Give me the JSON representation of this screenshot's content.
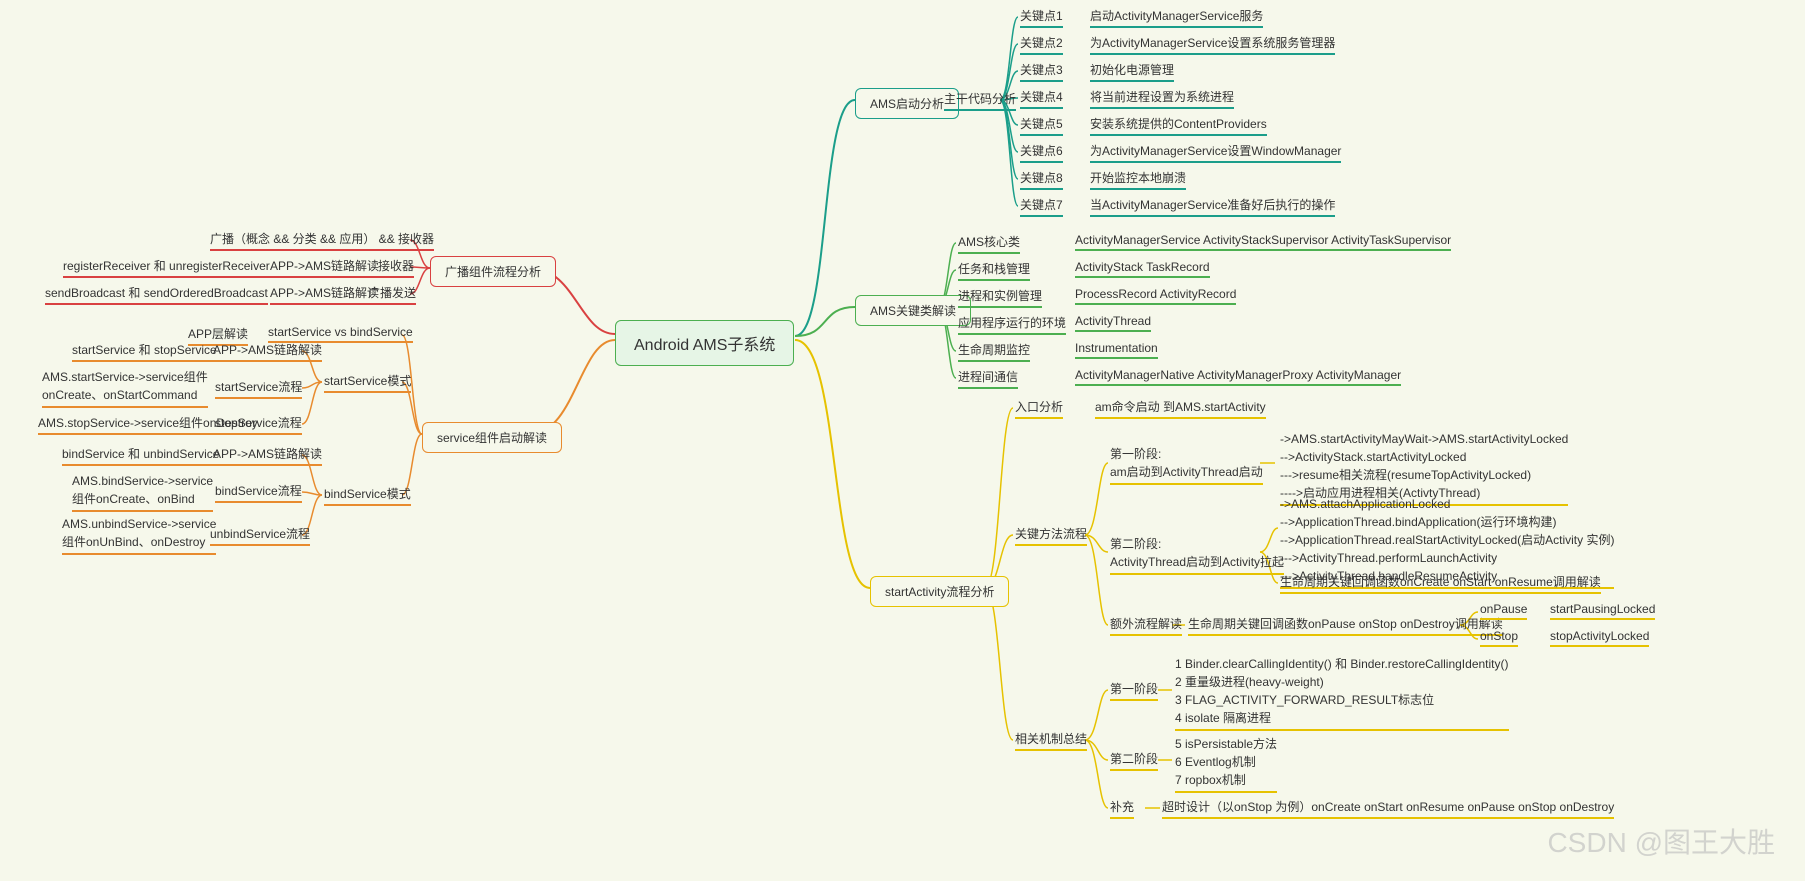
{
  "root": {
    "label": "Android AMS子系统"
  },
  "colors": {
    "teal": "#1b9e8a",
    "green": "#4caf50",
    "yellow": "#e6c200",
    "red": "#d94141",
    "orange": "#e88b2e",
    "bg": "#f6f8eb"
  },
  "branches": {
    "ams_start": {
      "label": "AMS启动分析",
      "sub": "主干代码分析",
      "items": [
        {
          "k": "关键点1",
          "v": "启动ActivityManagerService服务"
        },
        {
          "k": "关键点2",
          "v": "为ActivityManagerService设置系统服务管理器"
        },
        {
          "k": "关键点3",
          "v": "初始化电源管理"
        },
        {
          "k": "关键点4",
          "v": "将当前进程设置为系统进程"
        },
        {
          "k": "关键点5",
          "v": "安装系统提供的ContentProviders"
        },
        {
          "k": "关键点6",
          "v": "为ActivityManagerService设置WindowManager"
        },
        {
          "k": "关键点8",
          "v": "开始监控本地崩溃"
        },
        {
          "k": "关键点7",
          "v": "当ActivityManagerService准备好后执行的操作"
        }
      ]
    },
    "ams_keys": {
      "label": "AMS关键类解读",
      "items": [
        {
          "k": "AMS核心类",
          "v": "ActivityManagerService  ActivityStackSupervisor ActivityTaskSupervisor"
        },
        {
          "k": "任务和栈管理",
          "v": "ActivityStack  TaskRecord"
        },
        {
          "k": "进程和实例管理",
          "v": "ProcessRecord  ActivityRecord"
        },
        {
          "k": "应用程序运行的环境",
          "v": "ActivityThread"
        },
        {
          "k": "生命周期监控",
          "v": "Instrumentation"
        },
        {
          "k": "进程间通信",
          "v": "ActivityManagerNative  ActivityManagerProxy ActivityManager"
        }
      ]
    },
    "start_activity": {
      "label": "startActivity流程分析",
      "entry": {
        "k": "入口分析",
        "v": "am命令启动 到AMS.startActivity"
      },
      "keyflow": {
        "label": "关键方法流程",
        "phase1": {
          "k": "第一阶段:\nam启动到ActivityThread启动",
          "lines": "->AMS.startActivityMayWait->AMS.startActivityLocked\n-->ActivityStack.startActivityLocked\n--->resume相关流程(resumeTopActivityLocked)\n---->启动应用进程相关(ActivtyThread)"
        },
        "phase2": {
          "k": "第二阶段:\nActivityThread启动到Activity拉起",
          "lines": "->AMS.attachApplicationLocked\n-->ApplicationThread.bindApplication(运行环境构建)\n-->ApplicationThread.realStartActivityLocked(启动Activity 实例)\n--->ActivityThread.performLaunchActivity\n--->ActivityThread.handleResumeActivity",
          "extra": "生命周期关键回调函数onCreate onStart onResume调用解读"
        },
        "extra_flow": {
          "k": "额外流程解读",
          "v": "生命周期关键回调函数onPause onStop onDestroy调用解读",
          "pauses": [
            {
              "k": "onPause",
              "v": "startPausingLocked"
            },
            {
              "k": "onStop",
              "v": "stopActivityLocked"
            }
          ]
        }
      },
      "summary": {
        "label": "相关机制总结",
        "phase1": {
          "k": "第一阶段",
          "lines": "1 Binder.clearCallingIdentity() 和 Binder.restoreCallingIdentity()\n2 重量级进程(heavy-weight)\n3 FLAG_ACTIVITY_FORWARD_RESULT标志位\n4 isolate 隔离进程"
        },
        "phase2": {
          "k": "第二阶段",
          "lines": "5 isPersistable方法\n6 Eventlog机制\n7 ropbox机制"
        },
        "extra": {
          "k": "补充",
          "v": "超时设计（以onStop 为例）onCreate onStart onResume onPause onStop onDestroy"
        }
      }
    },
    "broadcast": {
      "label": "广播组件流程分析",
      "items": [
        {
          "a": "广播（概念 && 分类 && 应用） && 接收器"
        },
        {
          "a": "registerReceiver 和 unregisterReceiver",
          "b": "APP->AMS链路解读",
          "c": "接收器"
        },
        {
          "a": "sendBroadcast 和 sendOrderedBroadcast",
          "b": "APP->AMS链路解读",
          "c": "广播发送"
        }
      ]
    },
    "service": {
      "label": "service组件启动解读",
      "top": {
        "a": "APP层解读",
        "b": "startService vs bindService"
      },
      "start_mode": {
        "label": "startService模式",
        "items": [
          {
            "a": "startService 和 stopService",
            "b": "APP->AMS链路解读"
          },
          {
            "a": "AMS.startService->service组件\nonCreate、onStartCommand",
            "b": "startService流程"
          },
          {
            "a": "AMS.stopService->service组件onDestroy",
            "b": "stopService流程"
          }
        ]
      },
      "bind_mode": {
        "label": "bindService模式",
        "items": [
          {
            "a": "bindService 和 unbindService",
            "b": "APP->AMS链路解读"
          },
          {
            "a": "AMS.bindService->service\n组件onCreate、onBind",
            "b": "bindService流程"
          },
          {
            "a": "AMS.unbindService->service\n组件onUnBind、onDestroy",
            "b": "unbindService流程"
          }
        ]
      }
    }
  },
  "watermark": "CSDN @图王大胜"
}
